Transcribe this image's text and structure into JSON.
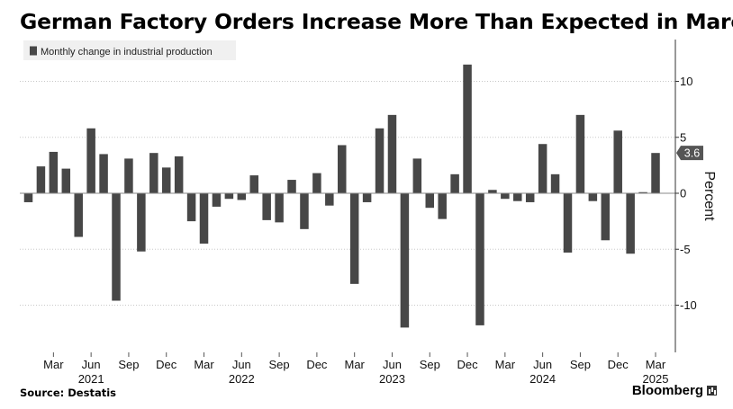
{
  "title": "German Factory Orders Increase More Than Expected in March",
  "source": "Source:  Destatis",
  "brand": "Bloomberg",
  "chart_data": {
    "type": "bar",
    "ylabel": "Percent",
    "ylim": [
      -14,
      14
    ],
    "yticks": [
      -10,
      -5,
      0,
      5,
      10
    ],
    "grid": true,
    "legend_position": "top-left",
    "bar_color": "#474747",
    "callout": {
      "label": "3.6",
      "value": 3.6
    },
    "series": [
      {
        "name": "Monthly change in industrial production",
        "values": [
          -0.8,
          2.4,
          3.7,
          2.2,
          -3.9,
          5.8,
          3.5,
          -9.6,
          3.1,
          -5.2,
          3.6,
          2.3,
          3.3,
          -2.5,
          -4.5,
          -1.2,
          -0.5,
          -0.6,
          1.6,
          -2.4,
          -2.6,
          1.2,
          -3.2,
          1.8,
          -1.1,
          4.3,
          -8.1,
          -0.8,
          5.8,
          7.0,
          -12.0,
          3.1,
          -1.3,
          -2.3,
          1.7,
          11.5,
          -11.8,
          0.3,
          -0.5,
          -0.7,
          -0.8,
          4.4,
          1.7,
          -5.3,
          7.0,
          -0.7,
          -4.2,
          5.6,
          -5.4,
          0.1,
          3.6
        ]
      }
    ],
    "x_tick_labels": [
      {
        "index": 2,
        "label": "Mar"
      },
      {
        "index": 5,
        "label": "Jun"
      },
      {
        "index": 8,
        "label": "Sep"
      },
      {
        "index": 11,
        "label": "Dec"
      },
      {
        "index": 14,
        "label": "Mar"
      },
      {
        "index": 17,
        "label": "Jun"
      },
      {
        "index": 20,
        "label": "Sep"
      },
      {
        "index": 23,
        "label": "Dec"
      },
      {
        "index": 26,
        "label": "Mar"
      },
      {
        "index": 29,
        "label": "Jun"
      },
      {
        "index": 32,
        "label": "Sep"
      },
      {
        "index": 35,
        "label": "Dec"
      },
      {
        "index": 38,
        "label": "Mar"
      },
      {
        "index": 41,
        "label": "Jun"
      },
      {
        "index": 44,
        "label": "Sep"
      },
      {
        "index": 47,
        "label": "Dec"
      },
      {
        "index": 50,
        "label": "Mar"
      }
    ],
    "x_year_labels": [
      {
        "index": 5,
        "label": "2021"
      },
      {
        "index": 17,
        "label": "2022"
      },
      {
        "index": 29,
        "label": "2023"
      },
      {
        "index": 41,
        "label": "2024"
      },
      {
        "index": 50,
        "label": "2025"
      }
    ]
  }
}
